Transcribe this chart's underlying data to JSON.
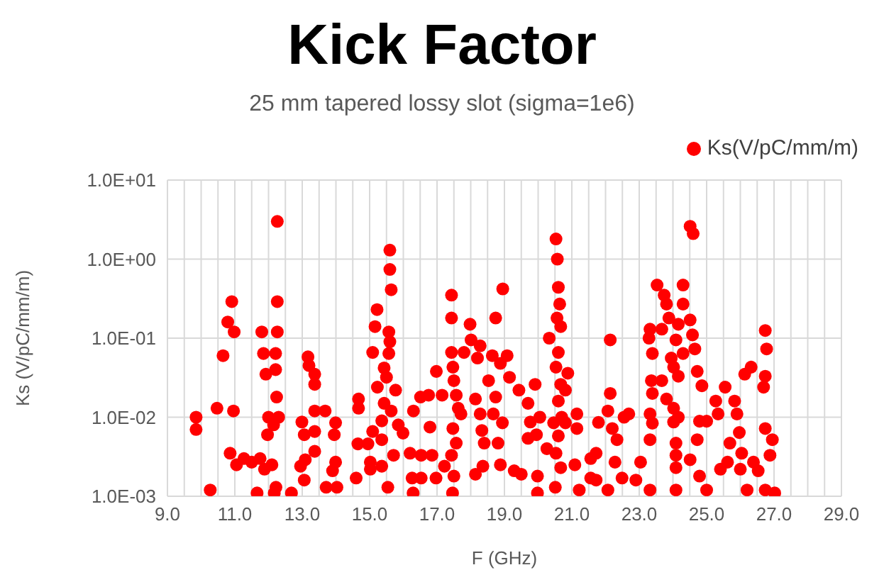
{
  "chart_data": {
    "type": "scatter",
    "title": "Kick Factor",
    "subtitle": "25 mm tapered lossy slot (sigma=1e6)",
    "xlabel": "F (GHz)",
    "ylabel": "Ks (V/pC/mm/m)",
    "log": "y",
    "grid": true,
    "legend": "top right",
    "marker": "circle",
    "xlim": [
      9,
      29
    ],
    "ylim": [
      0.001,
      10
    ],
    "xticks": [
      {
        "value": 9,
        "label": "9.0"
      },
      {
        "value": 9.5,
        "label": null
      },
      {
        "value": 10,
        "label": null
      },
      {
        "value": 10.5,
        "label": null
      },
      {
        "value": 11,
        "label": "11.0"
      },
      {
        "value": 11.5,
        "label": null
      },
      {
        "value": 12,
        "label": null
      },
      {
        "value": 12.5,
        "label": null
      },
      {
        "value": 13,
        "label": "13.0"
      },
      {
        "value": 13.5,
        "label": null
      },
      {
        "value": 14,
        "label": null
      },
      {
        "value": 14.5,
        "label": null
      },
      {
        "value": 15,
        "label": "15.0"
      },
      {
        "value": 15.5,
        "label": null
      },
      {
        "value": 16,
        "label": null
      },
      {
        "value": 16.5,
        "label": null
      },
      {
        "value": 17,
        "label": "17.0"
      },
      {
        "value": 17.5,
        "label": null
      },
      {
        "value": 18,
        "label": null
      },
      {
        "value": 18.5,
        "label": null
      },
      {
        "value": 19,
        "label": "19.0"
      },
      {
        "value": 19.5,
        "label": null
      },
      {
        "value": 20,
        "label": null
      },
      {
        "value": 20.5,
        "label": null
      },
      {
        "value": 21,
        "label": "21.0"
      },
      {
        "value": 21.5,
        "label": null
      },
      {
        "value": 22,
        "label": null
      },
      {
        "value": 22.5,
        "label": null
      },
      {
        "value": 23,
        "label": "23.0"
      },
      {
        "value": 23.5,
        "label": null
      },
      {
        "value": 24,
        "label": null
      },
      {
        "value": 24.5,
        "label": null
      },
      {
        "value": 25,
        "label": "25.0"
      },
      {
        "value": 25.5,
        "label": null
      },
      {
        "value": 26,
        "label": null
      },
      {
        "value": 26.5,
        "label": null
      },
      {
        "value": 27,
        "label": "27.0"
      },
      {
        "value": 27.5,
        "label": null
      },
      {
        "value": 28,
        "label": null
      },
      {
        "value": 28.5,
        "label": null
      },
      {
        "value": 29,
        "label": "29.0"
      }
    ],
    "yticks": [
      {
        "value": 0.001,
        "label": "1.0E-03"
      },
      {
        "value": 0.01,
        "label": "1.0E-02"
      },
      {
        "value": 0.1,
        "label": "1.0E-01"
      },
      {
        "value": 1,
        "label": "1.0E+00"
      },
      {
        "value": 10,
        "label": "1.0E+01"
      }
    ],
    "series": [
      {
        "name": "Ks(V/pC/mm/m)",
        "color": "#ff0000",
        "x": [
          12.26,
          9.85,
          9.85,
          10.27,
          10.47,
          10.65,
          10.79,
          10.91,
          10.98,
          10.96,
          10.86,
          11.05,
          11.27,
          11.5,
          11.75,
          11.8,
          11.85,
          11.92,
          11.88,
          11.66,
          12.0,
          11.97,
          12.1,
          12.21,
          12.21,
          12.24,
          12.26,
          12.26,
          12.15,
          12.3,
          12.22,
          12.17,
          12.68,
          13.17,
          13.2,
          13.37,
          13.37,
          12.99,
          13.06,
          13.37,
          13.37,
          13.37,
          13.68,
          13.09,
          12.95,
          13.06,
          13.71,
          13.99,
          13.95,
          13.99,
          13.9,
          14.03,
          14.67,
          14.67,
          14.65,
          14.6,
          14.95,
          15.02,
          15.6,
          15.6,
          15.64,
          15.22,
          15.16,
          15.57,
          15.6,
          15.09,
          15.57,
          15.43,
          15.5,
          15.23,
          15.77,
          15.43,
          15.64,
          15.36,
          15.85,
          15.99,
          15.09,
          15.36,
          16.2,
          15.71,
          15.02,
          15.36,
          15.54,
          16.26,
          16.29,
          16.3,
          16.51,
          16.75,
          16.79,
          16.53,
          16.85,
          16.53,
          16.98,
          17.15,
          16.97,
          17.22,
          17.43,
          17.43,
          17.43,
          17.47,
          17.5,
          17.57,
          17.63,
          17.47,
          17.57,
          17.43,
          17.5,
          17.46,
          17.71,
          17.8,
          17.98,
          18.01,
          18.28,
          18.2,
          18.14,
          18.28,
          18.33,
          18.4,
          18.14,
          18.36,
          18.53,
          18.64,
          18.74,
          18.95,
          18.88,
          18.74,
          18.67,
          18.94,
          18.81,
          18.88,
          19.08,
          19.15,
          19.43,
          19.29,
          19.5,
          19.7,
          19.77,
          19.7,
          19.91,
          20.05,
          19.95,
          19.98,
          19.98,
          20.26,
          20.33,
          20.53,
          20.57,
          20.6,
          20.64,
          20.56,
          20.67,
          20.6,
          20.53,
          20.67,
          20.6,
          20.7,
          20.46,
          20.6,
          20.53,
          20.67,
          20.51,
          20.81,
          20.88,
          20.81,
          21.15,
          21.15,
          21.09,
          21.22,
          21.56,
          21.56,
          21.79,
          21.72,
          21.72,
          22.07,
          22.14,
          22.14,
          22.07,
          22.2,
          22.34,
          22.55,
          22.69,
          22.28,
          22.49,
          22.9,
          23.04,
          23.32,
          23.32,
          23.39,
          23.32,
          23.39,
          23.36,
          23.39,
          23.29,
          23.32,
          23.53,
          23.74,
          23.81,
          23.88,
          23.67,
          23.67,
          23.81,
          24.09,
          23.95,
          24.02,
          24.16,
          24.02,
          24.16,
          24.02,
          24.09,
          24.09,
          24.09,
          24.09,
          24.16,
          24.3,
          24.3,
          24.3,
          24.51,
          24.6,
          24.51,
          24.58,
          24.65,
          24.72,
          24.79,
          24.72,
          24.51,
          24.79,
          24.86,
          25.0,
          25.0,
          25.27,
          25.34,
          25.55,
          25.62,
          25.41,
          25.69,
          25.83,
          25.9,
          25.97,
          26.04,
          26.0,
          26.2,
          26.13,
          26.32,
          26.39,
          26.74,
          26.78,
          26.74,
          26.69,
          26.74,
          26.95,
          26.88,
          26.74,
          27.02,
          26.53
        ],
        "values": [
          3.0,
          0.01,
          0.007,
          0.0012,
          0.013,
          0.06,
          0.16,
          0.29,
          0.12,
          0.012,
          0.0035,
          0.0025,
          0.003,
          0.0027,
          0.003,
          0.12,
          0.064,
          0.035,
          0.0022,
          0.0011,
          0.01,
          0.006,
          0.0025,
          0.064,
          0.04,
          0.018,
          0.29,
          0.12,
          0.008,
          0.01,
          0.0013,
          0.0011,
          0.0011,
          0.058,
          0.045,
          0.035,
          0.026,
          0.0087,
          0.006,
          0.012,
          0.0066,
          0.0037,
          0.012,
          0.0029,
          0.0024,
          0.0016,
          0.0013,
          0.0085,
          0.006,
          0.0027,
          0.0021,
          0.0013,
          0.017,
          0.013,
          0.0046,
          0.0017,
          0.0046,
          0.0022,
          1.3,
          0.74,
          0.41,
          0.23,
          0.14,
          0.12,
          0.09,
          0.066,
          0.064,
          0.042,
          0.032,
          0.024,
          0.022,
          0.015,
          0.012,
          0.009,
          0.008,
          0.0063,
          0.0066,
          0.0052,
          0.0035,
          0.0033,
          0.0027,
          0.0024,
          0.0013,
          0.0017,
          0.0011,
          0.012,
          0.018,
          0.019,
          0.0075,
          0.0033,
          0.0033,
          0.0017,
          0.038,
          0.019,
          0.0017,
          0.0024,
          0.35,
          0.18,
          0.066,
          0.043,
          0.029,
          0.019,
          0.013,
          0.0072,
          0.0047,
          0.0033,
          0.0018,
          0.0011,
          0.011,
          0.066,
          0.15,
          0.095,
          0.08,
          0.056,
          0.017,
          0.011,
          0.0068,
          0.0047,
          0.0019,
          0.0024,
          0.029,
          0.06,
          0.18,
          0.42,
          0.048,
          0.018,
          0.011,
          0.0085,
          0.0047,
          0.0025,
          0.06,
          0.032,
          0.022,
          0.0021,
          0.0019,
          0.015,
          0.0087,
          0.0054,
          0.026,
          0.01,
          0.006,
          0.0018,
          0.0011,
          0.004,
          0.1,
          1.8,
          1.0,
          0.44,
          0.27,
          0.18,
          0.14,
          0.066,
          0.043,
          0.026,
          0.016,
          0.01,
          0.0085,
          0.0058,
          0.0035,
          0.0023,
          0.0013,
          0.022,
          0.036,
          0.0085,
          0.011,
          0.0072,
          0.0025,
          0.0012,
          0.003,
          0.0017,
          0.0086,
          0.0035,
          0.0016,
          0.0012,
          0.095,
          0.02,
          0.012,
          0.0072,
          0.0052,
          0.01,
          0.011,
          0.0027,
          0.0017,
          0.0016,
          0.0027,
          0.0012,
          0.0052,
          0.0084,
          0.011,
          0.02,
          0.029,
          0.064,
          0.1,
          0.13,
          0.47,
          0.35,
          0.27,
          0.18,
          0.13,
          0.029,
          0.017,
          0.095,
          0.056,
          0.043,
          0.033,
          0.013,
          0.01,
          0.0087,
          0.0047,
          0.0033,
          0.0023,
          0.0012,
          0.15,
          0.27,
          0.47,
          0.064,
          2.6,
          2.1,
          0.17,
          0.11,
          0.073,
          0.038,
          0.0089,
          0.0052,
          0.0029,
          0.0018,
          0.025,
          0.0089,
          0.0012,
          0.016,
          0.011,
          0.024,
          0.0027,
          0.0022,
          0.0047,
          0.016,
          0.011,
          0.0064,
          0.0035,
          0.0022,
          0.0012,
          0.035,
          0.043,
          0.0027,
          0.125,
          0.073,
          0.033,
          0.024,
          0.0072,
          0.0052,
          0.0033,
          0.0012,
          0.0011,
          0.0021
        ]
      }
    ]
  }
}
